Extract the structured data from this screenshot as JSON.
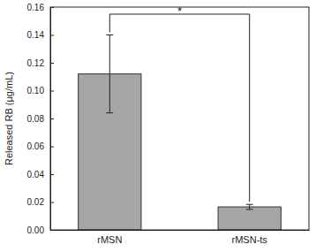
{
  "chart_data": {
    "type": "bar",
    "y_label": "Released RB (µg/mL)",
    "categories": [
      "rMSN",
      "rMSN-ts"
    ],
    "values": [
      0.112,
      0.0165
    ],
    "errors": [
      0.028,
      0.0018
    ],
    "color": "#a6a6a6",
    "ylim": [
      0,
      0.16
    ],
    "yticks": [
      {
        "value": 0,
        "label": "0.00"
      },
      {
        "value": 0.02,
        "label": "0.02"
      },
      {
        "value": 0.04,
        "label": "0.04"
      },
      {
        "value": 0.06,
        "label": "0.06"
      },
      {
        "value": 0.08,
        "label": "0.08"
      },
      {
        "value": 0.1,
        "label": "0.10"
      },
      {
        "value": 0.12,
        "label": "0.12"
      },
      {
        "value": 0.14,
        "label": "0.14"
      },
      {
        "value": 0.16,
        "label": "0.16"
      }
    ],
    "annotation": "*",
    "grid": false
  }
}
